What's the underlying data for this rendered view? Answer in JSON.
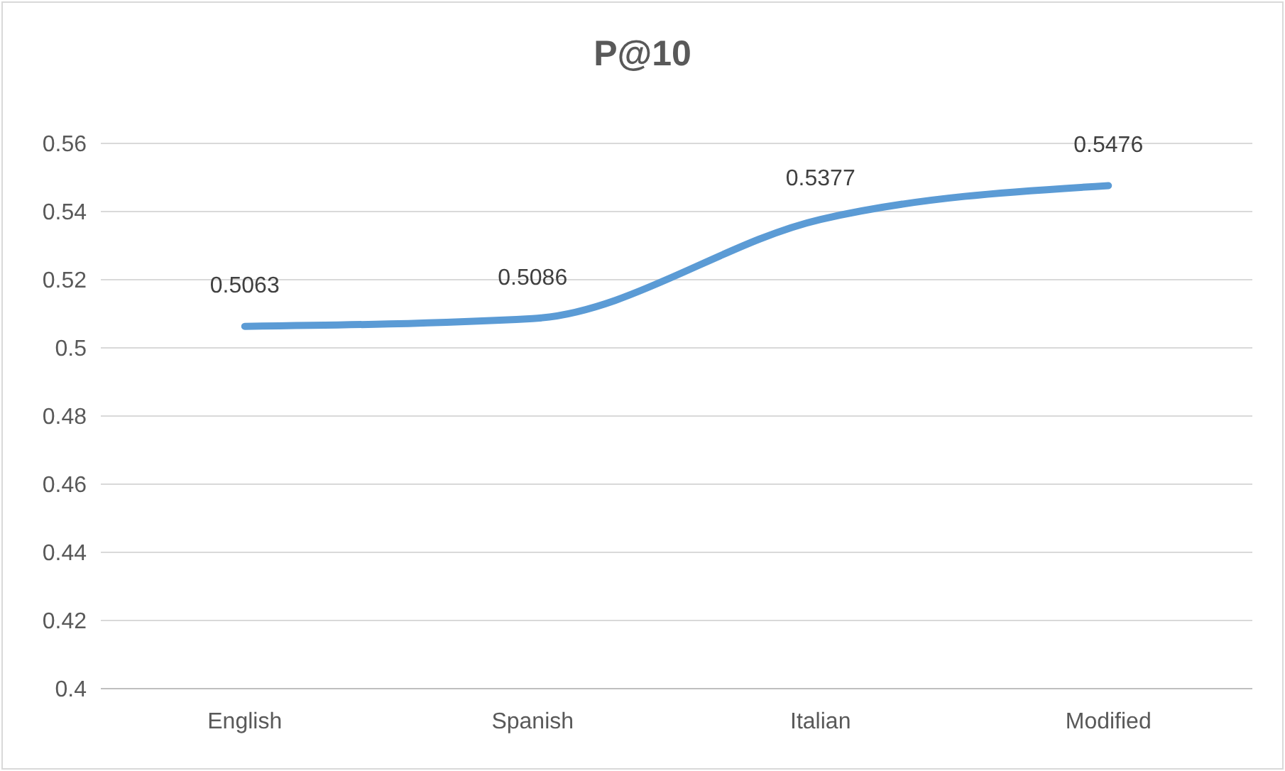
{
  "chart_data": {
    "type": "line",
    "title": "P@10",
    "categories": [
      "English",
      "Spanish",
      "Italian",
      "Modified"
    ],
    "series": [
      {
        "color": "#5b9bd5",
        "values": [
          0.5063,
          0.5086,
          0.5377,
          0.5476
        ]
      }
    ],
    "ylim": [
      0.4,
      0.56
    ],
    "yticks": [
      0.4,
      0.42,
      0.44,
      0.46,
      0.48,
      0.5,
      0.52,
      0.54,
      0.56
    ],
    "grid": "y",
    "data_labels": true,
    "marker": "none"
  }
}
